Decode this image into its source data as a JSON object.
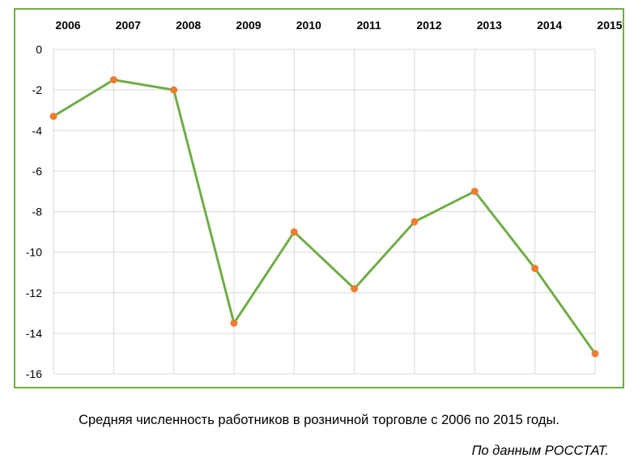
{
  "chart_data": {
    "type": "line",
    "x": [
      "2006",
      "2007",
      "2008",
      "2009",
      "2010",
      "2011",
      "2012",
      "2013",
      "2014",
      "2015"
    ],
    "series": [
      {
        "values": [
          -3.3,
          -1.5,
          -2.0,
          -13.5,
          -9.0,
          -11.8,
          -8.5,
          -7.0,
          -10.8,
          -15.0
        ]
      }
    ],
    "ylim": [
      -16,
      0
    ],
    "yticks": [
      "0",
      "-2",
      "-4",
      "-6",
      "-8",
      "-10",
      "-12",
      "-14",
      "-16"
    ],
    "x_axis_position": "top",
    "grid": true,
    "line_color": "#70ad47",
    "marker_color": "#ed7d31"
  },
  "caption": "Средняя численность работников в розничной торговле с 2006 по 2015 годы.",
  "source": "По данным РОССТАТ."
}
